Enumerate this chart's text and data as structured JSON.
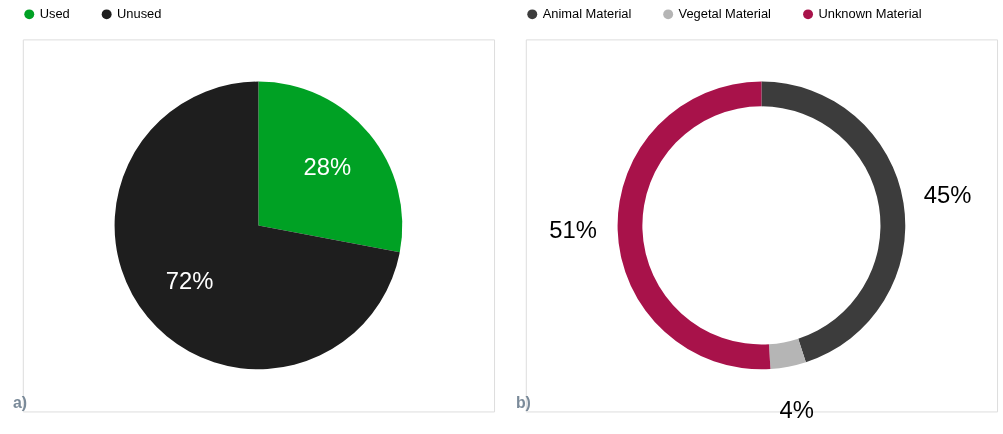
{
  "chart_data": [
    {
      "type": "pie",
      "categories": [
        "Used",
        "Unused"
      ],
      "values": [
        28,
        72
      ],
      "colors": [
        "#00a124",
        "#1e1e1e"
      ],
      "value_labels": [
        "28%",
        "72%"
      ],
      "legend": "top",
      "annotations": [
        "a)"
      ]
    },
    {
      "type": "donut",
      "categories": [
        "Animal Material",
        "Vegetal Material",
        "Unknown Material"
      ],
      "values": [
        45,
        4,
        51
      ],
      "colors": [
        "#3c3c3c",
        "#b5b5b5",
        "#a8124a"
      ],
      "value_labels": [
        "45%",
        "4%",
        "51%"
      ],
      "legend": "top",
      "annotations": [
        "b)"
      ]
    }
  ]
}
